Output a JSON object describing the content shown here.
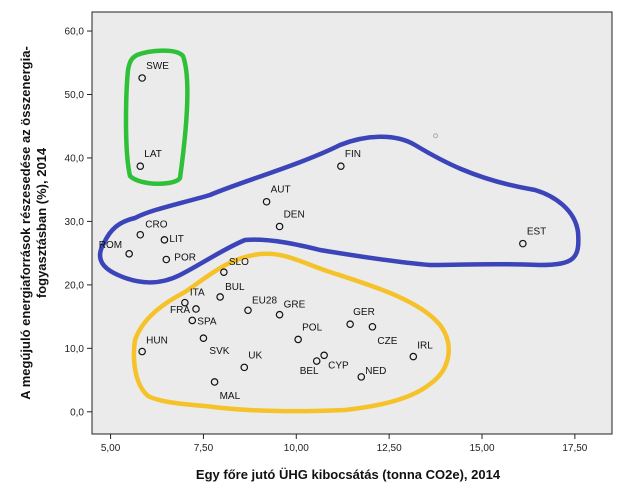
{
  "chart_data": {
    "type": "scatter",
    "xlabel": "Egy főre jutó ÜHG kibocsátás (tonna CO2e), 2014",
    "ylabel_lines": [
      "A megújuló energiaforrások részesedése az összenergia-",
      "fogyasztásban (%), 2014"
    ],
    "xlim": [
      4.5,
      18.5
    ],
    "ylim": [
      -3.5,
      63.0
    ],
    "xticks": [
      5.0,
      7.5,
      10.0,
      12.5,
      15.0,
      17.5
    ],
    "xtick_labels": [
      "5,00",
      "7,50",
      "10,00",
      "12,50",
      "15,00",
      "17,50"
    ],
    "yticks": [
      0,
      10,
      20,
      30,
      40,
      50,
      60
    ],
    "ytick_labels": [
      "0,0",
      "10,0",
      "20,0",
      "30,0",
      "40,0",
      "50,0",
      "60,0"
    ],
    "grid": false,
    "plot_background": "#ebebeb",
    "marker_color": "#111111",
    "points": [
      {
        "label": "SWE",
        "x": 5.85,
        "y": 52.6
      },
      {
        "label": "LAT",
        "x": 5.8,
        "y": 38.7
      },
      {
        "label": "FIN",
        "x": 11.2,
        "y": 38.7
      },
      {
        "label": "AUT",
        "x": 9.2,
        "y": 33.1
      },
      {
        "label": "DEN",
        "x": 9.55,
        "y": 29.2
      },
      {
        "label": "EST",
        "x": 16.1,
        "y": 26.5
      },
      {
        "label": "CRO",
        "x": 5.8,
        "y": 27.9
      },
      {
        "label": "LIT",
        "x": 6.45,
        "y": 27.1
      },
      {
        "label": "ROM",
        "x": 5.5,
        "y": 24.9
      },
      {
        "label": "POR",
        "x": 6.5,
        "y": 24.0
      },
      {
        "label": "SLO",
        "x": 8.05,
        "y": 22.0
      },
      {
        "label": "BUL",
        "x": 7.95,
        "y": 18.1
      },
      {
        "label": "ITA",
        "x": 7.0,
        "y": 17.2
      },
      {
        "label": "EU28",
        "x": 8.7,
        "y": 16.0
      },
      {
        "label": "FRA",
        "x": 7.3,
        "y": 16.2
      },
      {
        "label": "SPA",
        "x": 7.2,
        "y": 14.4
      },
      {
        "label": "GRE",
        "x": 9.55,
        "y": 15.3
      },
      {
        "label": "GER",
        "x": 11.45,
        "y": 13.8
      },
      {
        "label": "CZE",
        "x": 12.05,
        "y": 13.4
      },
      {
        "label": "POL",
        "x": 10.05,
        "y": 11.4
      },
      {
        "label": "SVK",
        "x": 7.5,
        "y": 11.6
      },
      {
        "label": "HUN",
        "x": 5.85,
        "y": 9.5
      },
      {
        "label": "UK",
        "x": 8.6,
        "y": 7.0
      },
      {
        "label": "BEL",
        "x": 10.55,
        "y": 8.0
      },
      {
        "label": "CYP",
        "x": 10.75,
        "y": 8.9
      },
      {
        "label": "IRL",
        "x": 13.15,
        "y": 8.7
      },
      {
        "label": "NED",
        "x": 11.75,
        "y": 5.5
      },
      {
        "label": "MAL",
        "x": 7.8,
        "y": 4.7
      }
    ],
    "outlier_point": {
      "x": 13.75,
      "y": 43.5,
      "color": "#aaaaaa"
    },
    "groups": [
      {
        "color": "#2ec036",
        "members": [
          "SWE",
          "LAT"
        ]
      },
      {
        "color": "#3b44b8",
        "members": [
          "FIN",
          "AUT",
          "DEN",
          "EST",
          "CRO",
          "LIT",
          "ROM",
          "POR"
        ]
      },
      {
        "color": "#f6c22a",
        "members": [
          "SLO",
          "BUL",
          "ITA",
          "EU28",
          "FRA",
          "SPA",
          "GRE",
          "GER",
          "CZE",
          "POL",
          "SVK",
          "HUN",
          "UK",
          "BEL",
          "CYP",
          "IRL",
          "NED",
          "MAL"
        ]
      }
    ]
  }
}
